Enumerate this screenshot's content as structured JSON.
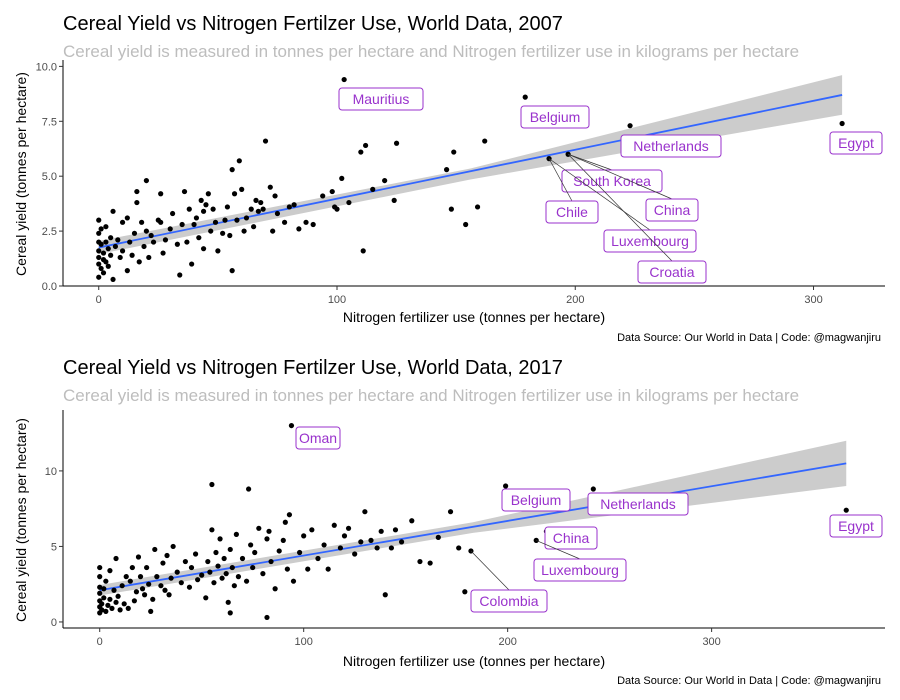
{
  "chart_data": [
    {
      "type": "scatter",
      "title": "Cereal Yield vs Nitrogen Fertilzer Use, World Data, 2007",
      "subtitle": "Cereal yield is measured in tonnes per hectare and Nitrogen fertilizer use in kilograms per hectare",
      "xlabel": "Nitrogen fertilizer use (tonnes per hectare)",
      "ylabel": "Cereal yield (tonnes per hectare)",
      "caption": "Data Source: Our World in Data | Code: @magwanjiru",
      "xlim": [
        -15,
        330
      ],
      "ylim": [
        0,
        10.2
      ],
      "xticks": [
        0,
        100,
        200,
        300
      ],
      "yticks": [
        0.0,
        2.5,
        5.0,
        7.5,
        10.0
      ],
      "ytick_labels": [
        "0.0",
        "2.5",
        "5.0",
        "7.5",
        "10.0"
      ],
      "fit": {
        "x": [
          0,
          312
        ],
        "y": [
          1.75,
          8.7
        ],
        "band_start": [
          1.45,
          2.05
        ],
        "band_mid": [
          4.85,
          5.35
        ],
        "band_end": [
          7.8,
          9.6
        ]
      },
      "labeled_points": [
        {
          "label": "Mauritius",
          "x": 103,
          "y": 9.4
        },
        {
          "label": "Belgium",
          "x": 179,
          "y": 8.6
        },
        {
          "label": "Netherlands",
          "x": 223,
          "y": 7.3
        },
        {
          "label": "Egypt",
          "x": 312,
          "y": 7.4
        },
        {
          "label": "South Korea",
          "x": 197,
          "y": 6.0
        },
        {
          "label": "Chile",
          "x": 189,
          "y": 5.8
        },
        {
          "label": "China",
          "x": 197,
          "y": 6.0
        },
        {
          "label": "Luxembourg",
          "x": 189,
          "y": 5.8
        },
        {
          "label": "Croatia",
          "x": 197,
          "y": 6.0
        }
      ],
      "points": [
        [
          0,
          1.0
        ],
        [
          0,
          1.3
        ],
        [
          0,
          1.6
        ],
        [
          0,
          2.0
        ],
        [
          0,
          2.4
        ],
        [
          0,
          3.0
        ],
        [
          0,
          0.4
        ],
        [
          1,
          0.8
        ],
        [
          1,
          1.9
        ],
        [
          1,
          2.6
        ],
        [
          2,
          1.2
        ],
        [
          2,
          0.6
        ],
        [
          2,
          1.5
        ],
        [
          3,
          1.1
        ],
        [
          3,
          2.0
        ],
        [
          3,
          2.7
        ],
        [
          4,
          1.7
        ],
        [
          4,
          0.9
        ],
        [
          5,
          1.4
        ],
        [
          5,
          2.2
        ],
        [
          6,
          3.4
        ],
        [
          6,
          0.3
        ],
        [
          7,
          1.8
        ],
        [
          8,
          2.1
        ],
        [
          9,
          1.3
        ],
        [
          10,
          1.6
        ],
        [
          10,
          2.9
        ],
        [
          12,
          0.7
        ],
        [
          12,
          3.1
        ],
        [
          13,
          2.0
        ],
        [
          14,
          1.4
        ],
        [
          15,
          2.4
        ],
        [
          16,
          3.8
        ],
        [
          16,
          4.3
        ],
        [
          17,
          1.1
        ],
        [
          18,
          2.9
        ],
        [
          19,
          1.8
        ],
        [
          20,
          2.5
        ],
        [
          20,
          4.8
        ],
        [
          21,
          1.3
        ],
        [
          22,
          2.3
        ],
        [
          23,
          2.0
        ],
        [
          25,
          3.0
        ],
        [
          26,
          4.2
        ],
        [
          27,
          1.5
        ],
        [
          28,
          2.1
        ],
        [
          30,
          2.6
        ],
        [
          31,
          3.3
        ],
        [
          33,
          1.9
        ],
        [
          34,
          0.5
        ],
        [
          35,
          2.8
        ],
        [
          36,
          4.3
        ],
        [
          37,
          2.0
        ],
        [
          38,
          3.5
        ],
        [
          39,
          1.0
        ],
        [
          40,
          2.8
        ],
        [
          41,
          3.1
        ],
        [
          42,
          2.2
        ],
        [
          43,
          3.9
        ],
        [
          44,
          1.7
        ],
        [
          45,
          3.7
        ],
        [
          46,
          4.2
        ],
        [
          47,
          2.5
        ],
        [
          48,
          3.5
        ],
        [
          49,
          2.9
        ],
        [
          50,
          1.6
        ],
        [
          52,
          2.4
        ],
        [
          53,
          3.0
        ],
        [
          54,
          3.6
        ],
        [
          55,
          2.3
        ],
        [
          56,
          0.7
        ],
        [
          57,
          4.2
        ],
        [
          58,
          3.0
        ],
        [
          59,
          5.7
        ],
        [
          60,
          4.4
        ],
        [
          61,
          2.5
        ],
        [
          62,
          3.1
        ],
        [
          64,
          3.5
        ],
        [
          65,
          2.7
        ],
        [
          66,
          3.9
        ],
        [
          67,
          3.4
        ],
        [
          68,
          3.8
        ],
        [
          69,
          3.5
        ],
        [
          70,
          6.6
        ],
        [
          72,
          4.5
        ],
        [
          73,
          2.5
        ],
        [
          74,
          4.1
        ],
        [
          75,
          3.3
        ],
        [
          78,
          2.9
        ],
        [
          80,
          3.6
        ],
        [
          82,
          3.7
        ],
        [
          84,
          2.6
        ],
        [
          87,
          2.9
        ],
        [
          90,
          2.8
        ],
        [
          94,
          4.1
        ],
        [
          98,
          4.3
        ],
        [
          100,
          3.5
        ],
        [
          102,
          4.9
        ],
        [
          105,
          3.8
        ],
        [
          110,
          6.1
        ],
        [
          111,
          1.6
        ],
        [
          112,
          6.4
        ],
        [
          115,
          4.4
        ],
        [
          120,
          4.8
        ],
        [
          124,
          3.9
        ],
        [
          125,
          6.5
        ],
        [
          146,
          5.3
        ],
        [
          148,
          3.5
        ],
        [
          149,
          6.1
        ],
        [
          154,
          2.8
        ],
        [
          159,
          3.6
        ],
        [
          162,
          6.6
        ],
        [
          189,
          5.8
        ],
        [
          197,
          6.0
        ],
        [
          179,
          8.6
        ],
        [
          103,
          9.4
        ],
        [
          223,
          7.3
        ],
        [
          312,
          7.4
        ],
        [
          99,
          3.6
        ],
        [
          56,
          5.3
        ],
        [
          44,
          3.4
        ],
        [
          26,
          2.9
        ]
      ]
    },
    {
      "type": "scatter",
      "title": "Cereal Yield vs Nitrogen Fertilzer Use, World Data, 2017",
      "subtitle": "Cereal yield is measured in tonnes per hectare and Nitrogen fertilizer use in kilograms per hectare",
      "xlabel": "Nitrogen fertilizer use (tonnes per hectare)",
      "ylabel": "Cereal yield (tonnes per hectare)",
      "caption": "Data Source: Our World in Data | Code: @magwanjiru",
      "xlim": [
        -18,
        385
      ],
      "ylim": [
        -0.4,
        13.9
      ],
      "xticks": [
        0,
        100,
        200,
        300
      ],
      "yticks": [
        0,
        5,
        10
      ],
      "ytick_labels": [
        "0",
        "5",
        "10"
      ],
      "fit": {
        "x": [
          0,
          366
        ],
        "y": [
          2.1,
          10.5
        ],
        "band_start": [
          1.75,
          2.45
        ],
        "band_mid": [
          5.9,
          6.6
        ],
        "band_end": [
          9.0,
          12.0
        ]
      },
      "labeled_points": [
        {
          "label": "Oman",
          "x": 94,
          "y": 13.0
        },
        {
          "label": "Belgium",
          "x": 199,
          "y": 9.0
        },
        {
          "label": "Netherlands",
          "x": 242,
          "y": 8.8
        },
        {
          "label": "Egypt",
          "x": 366,
          "y": 7.4
        },
        {
          "label": "China",
          "x": 219,
          "y": 6.0
        },
        {
          "label": "Luxembourg",
          "x": 214,
          "y": 5.4
        },
        {
          "label": "Colombia",
          "x": 182,
          "y": 4.7
        }
      ],
      "points": [
        [
          0,
          0.6
        ],
        [
          0,
          1.0
        ],
        [
          0,
          1.4
        ],
        [
          0,
          1.9
        ],
        [
          0,
          2.3
        ],
        [
          0,
          3.0
        ],
        [
          0,
          3.6
        ],
        [
          1,
          0.8
        ],
        [
          1,
          1.2
        ],
        [
          2,
          1.6
        ],
        [
          2,
          2.2
        ],
        [
          3,
          0.7
        ],
        [
          3,
          2.7
        ],
        [
          4,
          1.1
        ],
        [
          5,
          1.5
        ],
        [
          5,
          3.4
        ],
        [
          6,
          0.9
        ],
        [
          7,
          2.1
        ],
        [
          8,
          1.3
        ],
        [
          8,
          4.2
        ],
        [
          9,
          1.7
        ],
        [
          10,
          0.8
        ],
        [
          11,
          2.4
        ],
        [
          12,
          1.2
        ],
        [
          13,
          3.0
        ],
        [
          14,
          0.9
        ],
        [
          15,
          2.7
        ],
        [
          16,
          3.6
        ],
        [
          17,
          1.4
        ],
        [
          18,
          2.0
        ],
        [
          19,
          4.3
        ],
        [
          20,
          3.0
        ],
        [
          21,
          2.2
        ],
        [
          22,
          1.8
        ],
        [
          23,
          3.6
        ],
        [
          24,
          2.5
        ],
        [
          25,
          0.7
        ],
        [
          26,
          1.5
        ],
        [
          27,
          4.8
        ],
        [
          28,
          3.0
        ],
        [
          30,
          2.4
        ],
        [
          31,
          3.9
        ],
        [
          32,
          2.1
        ],
        [
          33,
          4.4
        ],
        [
          34,
          1.8
        ],
        [
          35,
          2.9
        ],
        [
          36,
          5.0
        ],
        [
          38,
          3.3
        ],
        [
          40,
          2.6
        ],
        [
          42,
          4.0
        ],
        [
          44,
          2.3
        ],
        [
          45,
          3.6
        ],
        [
          47,
          4.5
        ],
        [
          48,
          2.8
        ],
        [
          50,
          3.1
        ],
        [
          52,
          1.6
        ],
        [
          53,
          4.0
        ],
        [
          54,
          3.3
        ],
        [
          55,
          6.1
        ],
        [
          55,
          9.1
        ],
        [
          56,
          2.6
        ],
        [
          57,
          4.6
        ],
        [
          58,
          3.7
        ],
        [
          59,
          5.5
        ],
        [
          60,
          2.9
        ],
        [
          61,
          4.2
        ],
        [
          62,
          3.2
        ],
        [
          63,
          1.3
        ],
        [
          64,
          4.8
        ],
        [
          65,
          3.6
        ],
        [
          66,
          2.4
        ],
        [
          67,
          5.8
        ],
        [
          68,
          3.0
        ],
        [
          70,
          4.2
        ],
        [
          72,
          2.7
        ],
        [
          73,
          8.8
        ],
        [
          74,
          5.1
        ],
        [
          75,
          3.6
        ],
        [
          76,
          4.6
        ],
        [
          78,
          6.2
        ],
        [
          80,
          3.2
        ],
        [
          82,
          5.5
        ],
        [
          83,
          6.0
        ],
        [
          84,
          4.0
        ],
        [
          86,
          2.2
        ],
        [
          88,
          4.7
        ],
        [
          90,
          5.4
        ],
        [
          91,
          6.6
        ],
        [
          92,
          3.5
        ],
        [
          93,
          7.1
        ],
        [
          95,
          2.7
        ],
        [
          98,
          4.6
        ],
        [
          100,
          5.7
        ],
        [
          102,
          3.5
        ],
        [
          104,
          6.1
        ],
        [
          107,
          4.2
        ],
        [
          110,
          5.1
        ],
        [
          112,
          3.5
        ],
        [
          115,
          6.4
        ],
        [
          118,
          4.9
        ],
        [
          120,
          5.7
        ],
        [
          122,
          6.2
        ],
        [
          125,
          4.5
        ],
        [
          128,
          5.3
        ],
        [
          130,
          7.3
        ],
        [
          133,
          5.4
        ],
        [
          136,
          4.9
        ],
        [
          138,
          6.0
        ],
        [
          140,
          1.8
        ],
        [
          143,
          4.9
        ],
        [
          145,
          6.1
        ],
        [
          148,
          5.3
        ],
        [
          153,
          6.7
        ],
        [
          157,
          4.0
        ],
        [
          162,
          3.9
        ],
        [
          166,
          5.6
        ],
        [
          172,
          7.3
        ],
        [
          176,
          4.9
        ],
        [
          179,
          2.0
        ],
        [
          182,
          4.7
        ],
        [
          199,
          9.0
        ],
        [
          242,
          8.8
        ],
        [
          366,
          7.4
        ],
        [
          219,
          6.0
        ],
        [
          214,
          5.4
        ],
        [
          94,
          13.0
        ],
        [
          82,
          0.3
        ],
        [
          64,
          0.6
        ]
      ]
    }
  ]
}
